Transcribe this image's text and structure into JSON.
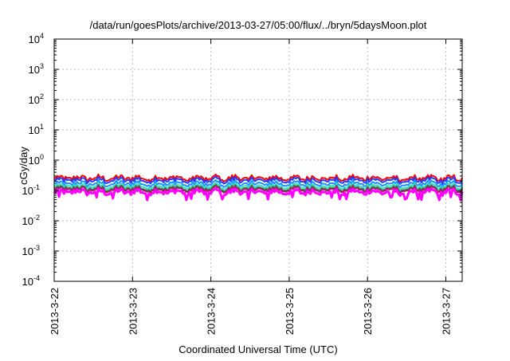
{
  "chart_data": {
    "type": "line",
    "title": "/data/run/goesPlots/archive/2013-03-27/05:00/flux/../bryn/5daysMoon.plot",
    "xlabel": "Coordinated Universal Time (UTC)",
    "ylabel": "cGy/day",
    "y_scale": "log",
    "ylim_exponents": [
      -4,
      4
    ],
    "y_ticks": [
      {
        "base": "10",
        "exp": "4",
        "value": 4
      },
      {
        "base": "10",
        "exp": "3",
        "value": 3
      },
      {
        "base": "10",
        "exp": "2",
        "value": 2
      },
      {
        "base": "10",
        "exp": "1",
        "value": 1
      },
      {
        "base": "10",
        "exp": "0",
        "value": 0
      },
      {
        "base": "10",
        "exp": "-1",
        "value": -1
      },
      {
        "base": "10",
        "exp": "-2",
        "value": -2
      },
      {
        "base": "10",
        "exp": "-3",
        "value": -3
      },
      {
        "base": "10",
        "exp": "-4",
        "value": -4
      }
    ],
    "xlim_days": [
      2013.0322,
      2013.0327
    ],
    "x_ticks": [
      "2013-3-22",
      "2013-3-23",
      "2013-3-24",
      "2013-3-25",
      "2013-3-26",
      "2013-3-27"
    ],
    "x_range": [
      "2013-3-22 00:00",
      "2013-3-27 05:00"
    ],
    "grid": true,
    "series": [
      {
        "color": "#ff0000",
        "level": 0.26
      },
      {
        "color": "#1e3cff",
        "level": 0.22
      },
      {
        "color": "#1e90ff",
        "level": 0.17
      },
      {
        "color": "#40e0c0",
        "level": 0.14
      },
      {
        "color": "#2e8b57",
        "level": 0.12
      },
      {
        "color": "#a02060",
        "level": 0.11
      },
      {
        "color": "#ff00ff",
        "level": 0.09
      }
    ]
  }
}
